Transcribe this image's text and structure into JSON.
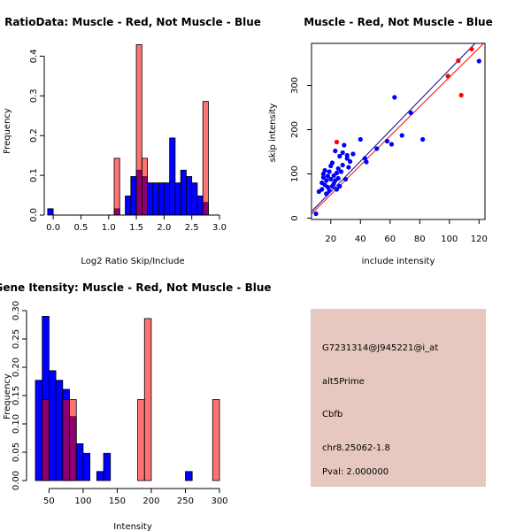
{
  "chart_data": [
    {
      "type": "bar",
      "title": "RatioData: Muscle - Red, Not Muscle - Blue",
      "xlabel": "Log2 Ratio Skip/Include",
      "ylabel": "Frequency",
      "xlim": [
        -0.05,
        3.0
      ],
      "ylim": [
        0,
        0.43
      ],
      "xticks": [
        0.0,
        0.5,
        1.0,
        1.5,
        2.0,
        2.5,
        3.0
      ],
      "xtick_labels": [
        "0.0",
        "0.5",
        "1.0",
        "1.5",
        "2.0",
        "2.5",
        "3.0"
      ],
      "yticks": [
        0.0,
        0.1,
        0.2,
        0.3,
        0.4
      ],
      "ytick_labels": [
        "0.0",
        "0.1",
        "0.2",
        "0.3",
        "0.4"
      ],
      "grid": false,
      "series": [
        {
          "name": "Not Muscle",
          "color": "#0000ff",
          "bins": [
            [
              -0.1,
              0.0,
              0.016
            ],
            [
              1.1,
              1.2,
              0.016
            ],
            [
              1.3,
              1.4,
              0.048
            ],
            [
              1.4,
              1.5,
              0.097
            ],
            [
              1.5,
              1.6,
              0.113
            ],
            [
              1.6,
              1.7,
              0.097
            ],
            [
              1.7,
              1.8,
              0.081
            ],
            [
              1.8,
              1.9,
              0.081
            ],
            [
              1.9,
              2.0,
              0.081
            ],
            [
              2.0,
              2.1,
              0.081
            ],
            [
              2.1,
              2.2,
              0.194
            ],
            [
              2.2,
              2.3,
              0.081
            ],
            [
              2.3,
              2.4,
              0.113
            ],
            [
              2.4,
              2.5,
              0.097
            ],
            [
              2.5,
              2.6,
              0.081
            ],
            [
              2.6,
              2.7,
              0.048
            ],
            [
              2.7,
              2.8,
              0.032
            ]
          ]
        },
        {
          "name": "Muscle",
          "color": "#ff0000",
          "bins": [
            [
              1.1,
              1.2,
              0.143
            ],
            [
              1.5,
              1.6,
              0.429
            ],
            [
              1.6,
              1.7,
              0.143
            ],
            [
              2.7,
              2.8,
              0.286
            ]
          ]
        }
      ]
    },
    {
      "type": "scatter",
      "title": "Muscle - Red, Not Muscle - Blue",
      "xlabel": "include intensity",
      "ylabel": "skip intensity",
      "xlim": [
        7,
        124
      ],
      "ylim": [
        -3,
        395
      ],
      "xticks": [
        20,
        40,
        60,
        80,
        100,
        120
      ],
      "xtick_labels": [
        "20",
        "40",
        "60",
        "80",
        "100",
        "120"
      ],
      "yticks": [
        0,
        100,
        200,
        300
      ],
      "ytick_labels": [
        "0",
        "100",
        "200",
        "300"
      ],
      "grid": false,
      "series": [
        {
          "name": "Not Muscle",
          "color": "#0000ff",
          "points": [
            [
              10,
              10
            ],
            [
              12,
              60
            ],
            [
              14,
              65
            ],
            [
              14,
              80
            ],
            [
              15,
              92
            ],
            [
              15,
              100
            ],
            [
              16,
              75
            ],
            [
              16,
              108
            ],
            [
              17,
              55
            ],
            [
              17,
              85
            ],
            [
              18,
              70
            ],
            [
              18,
              95
            ],
            [
              19,
              105
            ],
            [
              19,
              62
            ],
            [
              20,
              118
            ],
            [
              20,
              88
            ],
            [
              21,
              125
            ],
            [
              21,
              72
            ],
            [
              22,
              78
            ],
            [
              22,
              96
            ],
            [
              23,
              85
            ],
            [
              23,
              152
            ],
            [
              24,
              102
            ],
            [
              24,
              65
            ],
            [
              25,
              112
            ],
            [
              25,
              90
            ],
            [
              26,
              140
            ],
            [
              26,
              72
            ],
            [
              27,
              105
            ],
            [
              28,
              120
            ],
            [
              28,
              148
            ],
            [
              29,
              165
            ],
            [
              30,
              88
            ],
            [
              31,
              135
            ],
            [
              31,
              142
            ],
            [
              32,
              115
            ],
            [
              33,
              128
            ],
            [
              35,
              145
            ],
            [
              40,
              178
            ],
            [
              43,
              135
            ],
            [
              44,
              127
            ],
            [
              51,
              157
            ],
            [
              58,
              174
            ],
            [
              61,
              167
            ],
            [
              63,
              273
            ],
            [
              68,
              187
            ],
            [
              74,
              238
            ],
            [
              82,
              178
            ],
            [
              120,
              355
            ]
          ]
        },
        {
          "name": "Muscle",
          "color": "#ff0000",
          "points": [
            [
              24,
              172
            ],
            [
              99,
              321
            ],
            [
              106,
              356
            ],
            [
              108,
              278
            ],
            [
              115,
              382
            ]
          ]
        }
      ],
      "fit_lines": [
        {
          "color": "#00008b",
          "from": [
            7,
            15
          ],
          "to": [
            124,
            418
          ]
        },
        {
          "color": "#ff0000",
          "from": [
            7,
            10
          ],
          "to": [
            124,
            398
          ]
        }
      ]
    },
    {
      "type": "bar",
      "title": "Gene Itensity: Muscle - Red, Not Muscle - Blue",
      "xlabel": "Intensity",
      "ylabel": "Frequency",
      "xlim": [
        30,
        300
      ],
      "ylim": [
        0,
        0.3
      ],
      "xticks": [
        50,
        100,
        150,
        200,
        250,
        300
      ],
      "xtick_labels": [
        "50",
        "100",
        "150",
        "200",
        "250",
        "300"
      ],
      "yticks": [
        0.0,
        0.05,
        0.1,
        0.15,
        0.2,
        0.25,
        0.3
      ],
      "ytick_labels": [
        "0.00",
        "0.05",
        "0.10",
        "0.15",
        "0.20",
        "0.25",
        "0.30"
      ],
      "grid": false,
      "series": [
        {
          "name": "Not Muscle",
          "color": "#0000ff",
          "bins": [
            [
              30,
              40,
              0.177
            ],
            [
              40,
              50,
              0.29
            ],
            [
              50,
              60,
              0.194
            ],
            [
              60,
              70,
              0.177
            ],
            [
              70,
              80,
              0.161
            ],
            [
              80,
              90,
              0.113
            ],
            [
              90,
              100,
              0.065
            ],
            [
              100,
              110,
              0.048
            ],
            [
              120,
              130,
              0.016
            ],
            [
              130,
              140,
              0.048
            ],
            [
              250,
              260,
              0.016
            ]
          ]
        },
        {
          "name": "Muscle",
          "color": "#ff0000",
          "bins": [
            [
              40,
              50,
              0.143
            ],
            [
              70,
              80,
              0.143
            ],
            [
              80,
              90,
              0.143
            ],
            [
              180,
              190,
              0.143
            ],
            [
              190,
              200,
              0.286
            ],
            [
              290,
              300,
              0.143
            ]
          ]
        }
      ]
    }
  ],
  "info_panel": {
    "background": "#e6c8c0",
    "probe_id": "G7231314@J945221@i_at",
    "event_type": "alt5Prime",
    "gene": "Cbfb",
    "location": "chr8.25062-1.8",
    "pval": "Pval: 2.000000",
    "pval_color": "#b00000"
  }
}
